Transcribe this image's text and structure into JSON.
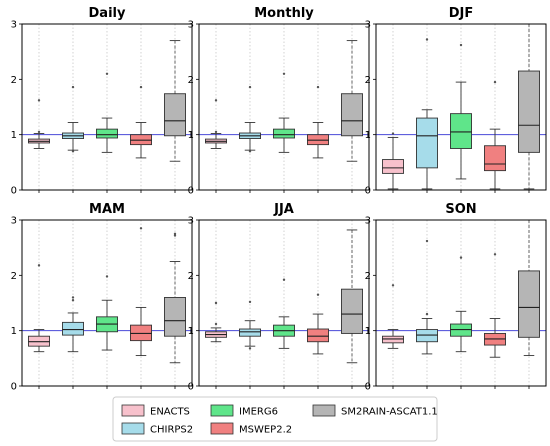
{
  "chart_data": {
    "type": "box",
    "ylim": [
      0,
      3
    ],
    "yticks": [
      0,
      1,
      2,
      3
    ],
    "reference_line": 1,
    "grid": "x-dotted",
    "legend_placement": "bottom-center",
    "series": [
      {
        "name": "ENACTS",
        "color": "#f7c1cc"
      },
      {
        "name": "CHIRPS2",
        "color": "#a6dcea"
      },
      {
        "name": "IMERG6",
        "color": "#5fe58a"
      },
      {
        "name": "MSWEP2.2",
        "color": "#f08080"
      },
      {
        "name": "SM2RAIN-ASCAT1.1",
        "color": "#b5b5b5"
      }
    ],
    "panels": [
      {
        "title": "Daily",
        "boxes": [
          {
            "whislo": 0.75,
            "q1": 0.85,
            "med": 0.88,
            "q3": 0.92,
            "whishi": 1.02,
            "fliers": [
              1.62,
              1.05
            ]
          },
          {
            "whislo": 0.72,
            "q1": 0.93,
            "med": 0.98,
            "q3": 1.03,
            "whishi": 1.22,
            "fliers": [
              1.86,
              0.7
            ]
          },
          {
            "whislo": 0.68,
            "q1": 0.94,
            "med": 1.0,
            "q3": 1.1,
            "whishi": 1.3,
            "fliers": [
              2.1
            ]
          },
          {
            "whislo": 0.58,
            "q1": 0.82,
            "med": 0.9,
            "q3": 1.0,
            "whishi": 1.22,
            "fliers": [
              1.86
            ]
          },
          {
            "whislo": 0.52,
            "q1": 0.98,
            "med": 1.25,
            "q3": 1.74,
            "whishi": 2.7,
            "fliers": []
          }
        ]
      },
      {
        "title": "Monthly",
        "boxes": [
          {
            "whislo": 0.75,
            "q1": 0.85,
            "med": 0.88,
            "q3": 0.92,
            "whishi": 1.02,
            "fliers": [
              1.62,
              1.05
            ]
          },
          {
            "whislo": 0.72,
            "q1": 0.93,
            "med": 0.98,
            "q3": 1.03,
            "whishi": 1.22,
            "fliers": [
              1.86,
              0.7
            ]
          },
          {
            "whislo": 0.68,
            "q1": 0.94,
            "med": 1.0,
            "q3": 1.1,
            "whishi": 1.3,
            "fliers": [
              2.1
            ]
          },
          {
            "whislo": 0.58,
            "q1": 0.82,
            "med": 0.9,
            "q3": 1.0,
            "whishi": 1.22,
            "fliers": [
              1.86
            ]
          },
          {
            "whislo": 0.52,
            "q1": 0.98,
            "med": 1.25,
            "q3": 1.74,
            "whishi": 2.7,
            "fliers": []
          }
        ]
      },
      {
        "title": "DJF",
        "boxes": [
          {
            "whislo": 0.02,
            "q1": 0.3,
            "med": 0.4,
            "q3": 0.55,
            "whishi": 0.95,
            "fliers": [
              1.02
            ]
          },
          {
            "whislo": 0.02,
            "q1": 0.4,
            "med": 0.98,
            "q3": 1.3,
            "whishi": 1.45,
            "fliers": [
              2.72
            ]
          },
          {
            "whislo": 0.2,
            "q1": 0.75,
            "med": 1.05,
            "q3": 1.38,
            "whishi": 1.95,
            "fliers": [
              2.62
            ]
          },
          {
            "whislo": 0.02,
            "q1": 0.35,
            "med": 0.47,
            "q3": 0.8,
            "whishi": 1.1,
            "fliers": [
              1.95
            ]
          },
          {
            "whislo": 0.02,
            "q1": 0.68,
            "med": 1.17,
            "q3": 2.15,
            "whishi": 3.0,
            "fliers": []
          }
        ]
      },
      {
        "title": "MAM",
        "boxes": [
          {
            "whislo": 0.62,
            "q1": 0.72,
            "med": 0.8,
            "q3": 0.9,
            "whishi": 1.02,
            "fliers": [
              2.18
            ]
          },
          {
            "whislo": 0.62,
            "q1": 0.92,
            "med": 1.02,
            "q3": 1.15,
            "whishi": 1.32,
            "fliers": [
              1.6,
              1.55
            ]
          },
          {
            "whislo": 0.65,
            "q1": 0.98,
            "med": 1.12,
            "q3": 1.25,
            "whishi": 1.55,
            "fliers": [
              1.98
            ]
          },
          {
            "whislo": 0.55,
            "q1": 0.82,
            "med": 0.95,
            "q3": 1.1,
            "whishi": 1.42,
            "fliers": [
              2.85
            ]
          },
          {
            "whislo": 0.42,
            "q1": 0.9,
            "med": 1.18,
            "q3": 1.6,
            "whishi": 2.25,
            "fliers": [
              2.75,
              2.72
            ]
          }
        ]
      },
      {
        "title": "JJA",
        "boxes": [
          {
            "whislo": 0.8,
            "q1": 0.88,
            "med": 0.93,
            "q3": 0.98,
            "whishi": 1.05,
            "fliers": [
              1.5,
              1.12
            ]
          },
          {
            "whislo": 0.72,
            "q1": 0.9,
            "med": 0.98,
            "q3": 1.03,
            "whishi": 1.18,
            "fliers": [
              1.52,
              0.68
            ]
          },
          {
            "whislo": 0.68,
            "q1": 0.9,
            "med": 1.0,
            "q3": 1.1,
            "whishi": 1.25,
            "fliers": [
              1.92
            ]
          },
          {
            "whislo": 0.58,
            "q1": 0.8,
            "med": 0.9,
            "q3": 1.03,
            "whishi": 1.3,
            "fliers": [
              1.65
            ]
          },
          {
            "whislo": 0.42,
            "q1": 0.95,
            "med": 1.3,
            "q3": 1.75,
            "whishi": 2.82,
            "fliers": []
          }
        ]
      },
      {
        "title": "SON",
        "boxes": [
          {
            "whislo": 0.68,
            "q1": 0.78,
            "med": 0.85,
            "q3": 0.9,
            "whishi": 1.02,
            "fliers": [
              1.82
            ]
          },
          {
            "whislo": 0.58,
            "q1": 0.8,
            "med": 0.92,
            "q3": 1.02,
            "whishi": 1.22,
            "fliers": [
              2.62,
              1.3
            ]
          },
          {
            "whislo": 0.62,
            "q1": 0.9,
            "med": 1.02,
            "q3": 1.12,
            "whishi": 1.35,
            "fliers": [
              2.32
            ]
          },
          {
            "whislo": 0.52,
            "q1": 0.74,
            "med": 0.85,
            "q3": 0.95,
            "whishi": 1.22,
            "fliers": [
              2.38
            ]
          },
          {
            "whislo": 0.55,
            "q1": 0.88,
            "med": 1.42,
            "q3": 2.08,
            "whishi": 3.0,
            "fliers": []
          }
        ]
      }
    ]
  }
}
